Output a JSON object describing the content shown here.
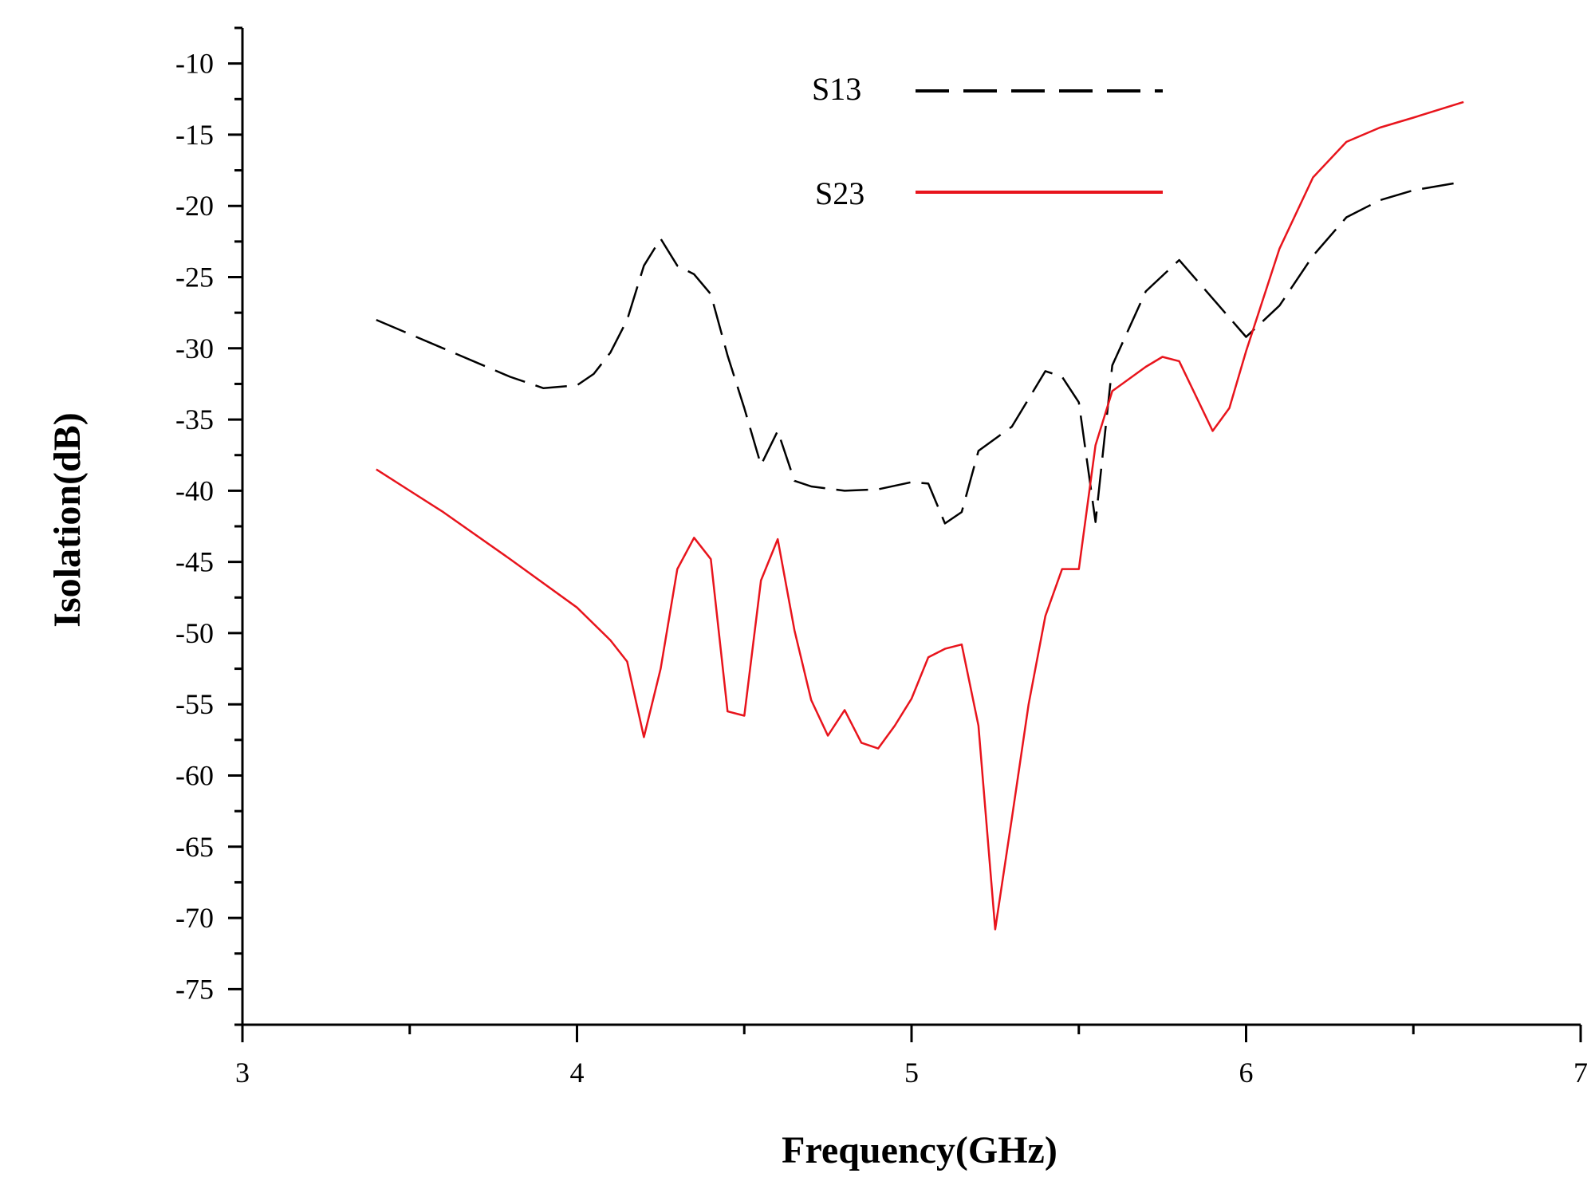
{
  "chart_data": {
    "type": "line",
    "title": "",
    "xlabel": "Frequency(GHz)",
    "ylabel": "Isolation(dB)",
    "xlim": [
      3,
      7
    ],
    "ylim": [
      -77.5,
      -7.5
    ],
    "x_ticks": [
      3,
      4,
      5,
      6,
      7
    ],
    "y_ticks": [
      -10,
      -15,
      -20,
      -25,
      -30,
      -35,
      -40,
      -45,
      -50,
      -55,
      -60,
      -65,
      -70,
      -75
    ],
    "grid": false,
    "legend_position": "top-center",
    "series": [
      {
        "name": "S13",
        "color": "#000000",
        "dash": "dashed",
        "x": [
          3.4,
          3.6,
          3.8,
          3.9,
          4.0,
          4.05,
          4.1,
          4.15,
          4.2,
          4.25,
          4.3,
          4.35,
          4.4,
          4.45,
          4.5,
          4.55,
          4.6,
          4.65,
          4.7,
          4.8,
          4.9,
          5.0,
          5.05,
          5.1,
          5.15,
          5.2,
          5.3,
          5.4,
          5.45,
          5.5,
          5.55,
          5.6,
          5.7,
          5.8,
          5.9,
          6.0,
          6.1,
          6.2,
          6.3,
          6.4,
          6.5,
          6.65
        ],
        "y": [
          -28,
          -30,
          -32,
          -32.8,
          -32.6,
          -31.8,
          -30.3,
          -28,
          -24.2,
          -22.3,
          -24.2,
          -24.8,
          -26.2,
          -30.5,
          -34.2,
          -38.2,
          -35.8,
          -39.3,
          -39.7,
          -40,
          -39.9,
          -39.4,
          -39.5,
          -42.3,
          -41.5,
          -37.2,
          -35.5,
          -31.6,
          -32,
          -33.8,
          -42.2,
          -31.2,
          -26,
          -23.8,
          -26.5,
          -29.2,
          -27,
          -23.5,
          -20.8,
          -19.6,
          -18.9,
          -18.3
        ]
      },
      {
        "name": "S23",
        "color": "#e8141c",
        "dash": "solid",
        "x": [
          3.4,
          3.6,
          3.8,
          4.0,
          4.1,
          4.15,
          4.2,
          4.25,
          4.3,
          4.35,
          4.4,
          4.45,
          4.5,
          4.55,
          4.6,
          4.65,
          4.7,
          4.75,
          4.8,
          4.85,
          4.9,
          4.95,
          5.0,
          5.05,
          5.1,
          5.15,
          5.2,
          5.25,
          5.3,
          5.35,
          5.4,
          5.45,
          5.5,
          5.55,
          5.6,
          5.7,
          5.75,
          5.8,
          5.9,
          5.95,
          6.0,
          6.1,
          6.2,
          6.3,
          6.4,
          6.5,
          6.65
        ],
        "y": [
          -38.5,
          -41.5,
          -44.8,
          -48.2,
          -50.5,
          -52,
          -57.3,
          -52.5,
          -45.5,
          -43.3,
          -44.8,
          -55.5,
          -55.8,
          -46.3,
          -43.4,
          -49.8,
          -54.7,
          -57.2,
          -55.4,
          -57.7,
          -58.1,
          -56.5,
          -54.6,
          -51.7,
          -51.1,
          -50.8,
          -56.5,
          -70.8,
          -63,
          -55,
          -48.8,
          -45.5,
          -45.5,
          -36.8,
          -33,
          -31.3,
          -30.6,
          -30.9,
          -35.8,
          -34.2,
          -30.2,
          -23,
          -18,
          -15.5,
          -14.5,
          -13.8,
          -12.7
        ]
      }
    ]
  }
}
